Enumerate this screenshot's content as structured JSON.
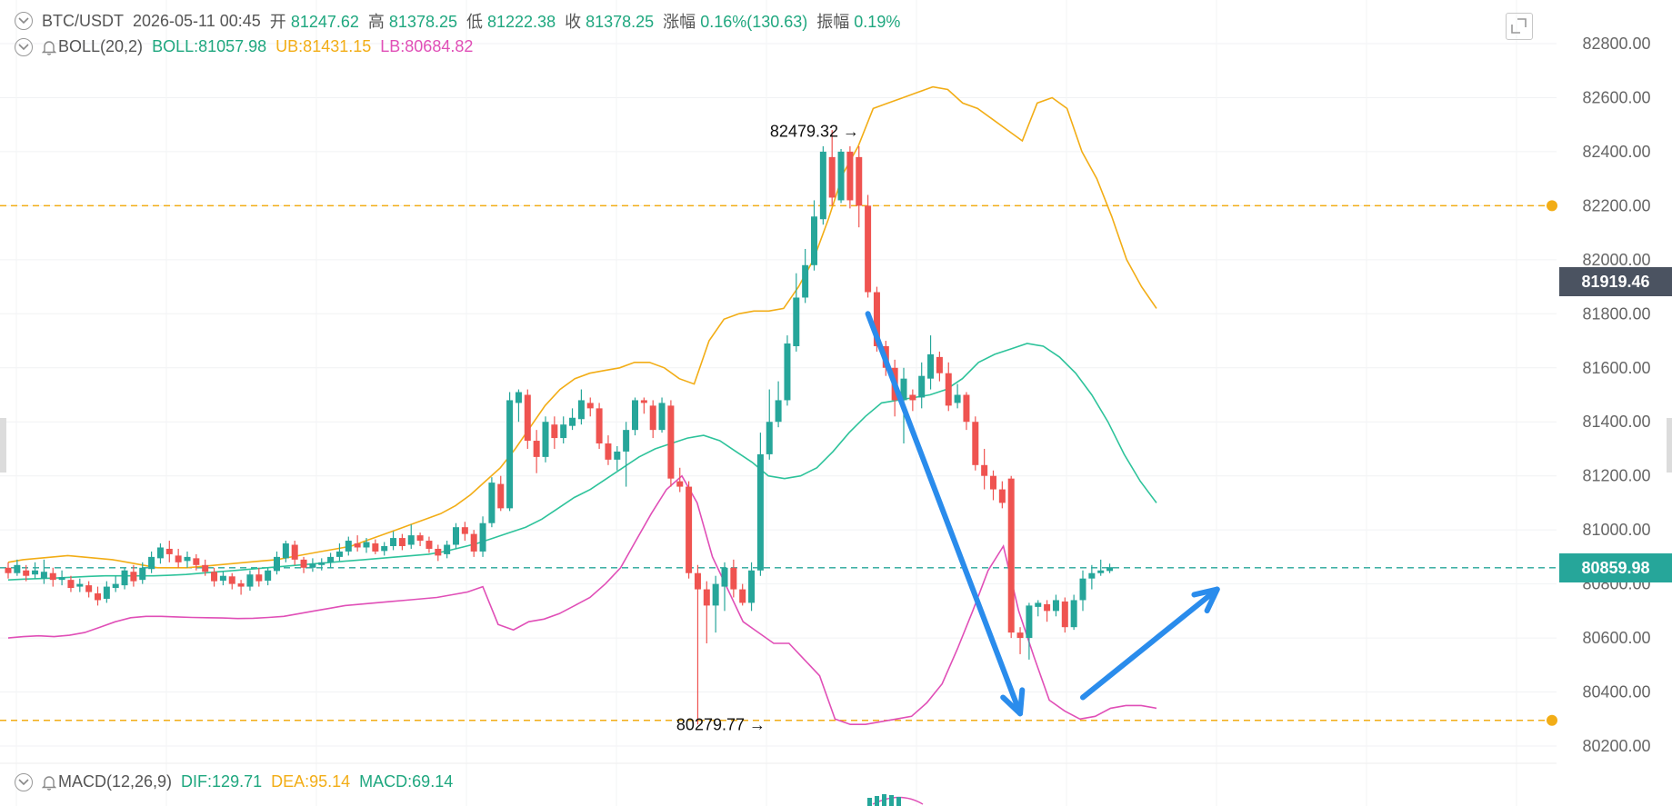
{
  "header": {
    "symbol": "BTC/USDT",
    "datetime": "2026-05-11 00:45",
    "open_label": "开",
    "open_value": "81247.62",
    "high_label": "高",
    "high_value": "81378.25",
    "low_label": "低",
    "low_value": "81222.38",
    "close_label": "收",
    "close_value": "81378.25",
    "change_label": "涨幅",
    "change_value": "0.16%(130.63)",
    "amplitude_label": "振幅",
    "amplitude_value": "0.19%"
  },
  "boll": {
    "name": "BOLL(20,2)",
    "boll_text": "BOLL:81057.98",
    "ub_text": "UB:81431.15",
    "lb_text": "LB:80684.82"
  },
  "macd": {
    "name": "MACD(12,26,9)",
    "dif_text": "DIF:129.71",
    "dea_text": "DEA:95.14",
    "macd_text": "MACD:69.14"
  },
  "price_tags": {
    "current_price": "80859.98",
    "crosshair_price": "81919.46"
  },
  "annotations": {
    "high_marker": "82479.32",
    "low_marker": "80279.77",
    "arrow_glyph": "→"
  },
  "colors": {
    "up": "#26a69a",
    "down": "#ef5350",
    "mid_band": "#2ec39b",
    "upper_band": "#f2ad16",
    "lower_band": "#e04fb7",
    "alert_line": "#f2ad16",
    "current_price": "#26a69a",
    "crosshair_tag": "#4b5361",
    "drawn_arrow": "#2a8cec"
  },
  "chart_data": {
    "type": "candlestick",
    "y_axis": {
      "range": [
        80160,
        82920
      ],
      "ticks": [
        "82800.00",
        "82600.00",
        "82400.00",
        "82200.00",
        "82000.00",
        "81800.00",
        "81600.00",
        "81400.00",
        "81200.00",
        "81000.00",
        "80800.00",
        "80600.00",
        "80400.00",
        "80200.00"
      ],
      "tick_values": [
        82800,
        82600,
        82400,
        82200,
        82000,
        81800,
        81600,
        81400,
        81200,
        81000,
        80800,
        80600,
        80400,
        80200
      ]
    },
    "horizontal_lines": [
      {
        "name": "alert-upper",
        "value": 82200,
        "style": "dashed"
      },
      {
        "name": "alert-lower",
        "value": 80295,
        "style": "dashed"
      },
      {
        "name": "current-price",
        "value": 80859.98,
        "style": "dashed"
      }
    ],
    "candles": [
      [
        80860,
        80840,
        80880,
        80820
      ],
      [
        80840,
        80870,
        80890,
        80830
      ],
      [
        80850,
        80830,
        80870,
        80810
      ],
      [
        80835,
        80850,
        80880,
        80820
      ],
      [
        80820,
        80845,
        80890,
        80800
      ],
      [
        80840,
        80815,
        80860,
        80790
      ],
      [
        80815,
        80825,
        80850,
        80795
      ],
      [
        80815,
        80785,
        80830,
        80770
      ],
      [
        80790,
        80800,
        80820,
        80770
      ],
      [
        80795,
        80770,
        80810,
        80750
      ],
      [
        80765,
        80740,
        80790,
        80720
      ],
      [
        80745,
        80790,
        80810,
        80730
      ],
      [
        80785,
        80800,
        80830,
        80770
      ],
      [
        80795,
        80850,
        80860,
        80780
      ],
      [
        80845,
        80810,
        80870,
        80790
      ],
      [
        80815,
        80860,
        80880,
        80800
      ],
      [
        80855,
        80900,
        80920,
        80840
      ],
      [
        80895,
        80935,
        80950,
        80875
      ],
      [
        80930,
        80910,
        80960,
        80880
      ],
      [
        80905,
        80880,
        80930,
        80860
      ],
      [
        80885,
        80900,
        80920,
        80860
      ],
      [
        80895,
        80870,
        80910,
        80850
      ],
      [
        80870,
        80845,
        80890,
        80830
      ],
      [
        80845,
        80810,
        80860,
        80790
      ],
      [
        80812,
        80830,
        80845,
        80795
      ],
      [
        80828,
        80800,
        80840,
        80780
      ],
      [
        80802,
        80790,
        80815,
        80760
      ],
      [
        80790,
        80835,
        80850,
        80775
      ],
      [
        80835,
        80810,
        80860,
        80790
      ],
      [
        80812,
        80850,
        80860,
        80795
      ],
      [
        80848,
        80900,
        80920,
        80835
      ],
      [
        80895,
        80950,
        80960,
        80880
      ],
      [
        80945,
        80890,
        80960,
        80870
      ],
      [
        80890,
        80860,
        80900,
        80840
      ],
      [
        80860,
        80875,
        80895,
        80845
      ],
      [
        80870,
        80880,
        80895,
        80850
      ],
      [
        80880,
        80900,
        80915,
        80860
      ],
      [
        80900,
        80920,
        80950,
        80885
      ],
      [
        80920,
        80960,
        80975,
        80905
      ],
      [
        80950,
        80935,
        80980,
        80920
      ],
      [
        80935,
        80955,
        80970,
        80915
      ],
      [
        80950,
        80920,
        80965,
        80910
      ],
      [
        80922,
        80940,
        80955,
        80905
      ],
      [
        80940,
        80970,
        80995,
        80925
      ],
      [
        80970,
        80940,
        80985,
        80925
      ],
      [
        80945,
        80980,
        81020,
        80930
      ],
      [
        80980,
        80960,
        80990,
        80940
      ],
      [
        80960,
        80930,
        80975,
        80915
      ],
      [
        80930,
        80905,
        80945,
        80885
      ],
      [
        80910,
        80945,
        80960,
        80895
      ],
      [
        80945,
        81010,
        81025,
        80930
      ],
      [
        81010,
        80985,
        81030,
        80960
      ],
      [
        80985,
        80920,
        81000,
        80900
      ],
      [
        80920,
        81025,
        81050,
        80900
      ],
      [
        81025,
        81175,
        81195,
        81010
      ],
      [
        81170,
        81080,
        81200,
        81070
      ],
      [
        81080,
        81480,
        81510,
        81070
      ],
      [
        81470,
        81510,
        81520,
        81400
      ],
      [
        81500,
        81330,
        81520,
        81300
      ],
      [
        81330,
        81270,
        81370,
        81210
      ],
      [
        81270,
        81400,
        81420,
        81250
      ],
      [
        81390,
        81340,
        81420,
        81300
      ],
      [
        81340,
        81390,
        81420,
        81320
      ],
      [
        81385,
        81415,
        81450,
        81370
      ],
      [
        81410,
        81480,
        81520,
        81390
      ],
      [
        81470,
        81450,
        81490,
        81420
      ],
      [
        81450,
        81320,
        81470,
        81300
      ],
      [
        81320,
        81260,
        81350,
        81240
      ],
      [
        81260,
        81290,
        81310,
        81220
      ],
      [
        81290,
        81370,
        81400,
        81160
      ],
      [
        81370,
        81480,
        81490,
        81350
      ],
      [
        81480,
        81470,
        81490,
        81430
      ],
      [
        81460,
        81370,
        81480,
        81340
      ],
      [
        81370,
        81470,
        81490,
        81360
      ],
      [
        81460,
        81190,
        81480,
        81160
      ],
      [
        81180,
        81160,
        81230,
        81140
      ],
      [
        81160,
        80840,
        81180,
        80820
      ],
      [
        80840,
        80780,
        80870,
        80280
      ],
      [
        80780,
        80720,
        80810,
        80580
      ],
      [
        80720,
        80800,
        80830,
        80620
      ],
      [
        80790,
        80860,
        80880,
        80700
      ],
      [
        80860,
        80780,
        80890,
        80750
      ],
      [
        80780,
        80730,
        80800,
        80720
      ],
      [
        80730,
        80850,
        80880,
        80700
      ],
      [
        80850,
        81280,
        81360,
        80830
      ],
      [
        81280,
        81400,
        81520,
        81260
      ],
      [
        81400,
        81480,
        81550,
        81380
      ],
      [
        81480,
        81690,
        81720,
        81460
      ],
      [
        81680,
        81860,
        81950,
        81660
      ],
      [
        81860,
        81980,
        82040,
        81840
      ],
      [
        81980,
        82160,
        82220,
        81960
      ],
      [
        82150,
        82400,
        82420,
        82130
      ],
      [
        82380,
        82230,
        82480,
        82200
      ],
      [
        82220,
        82400,
        82410,
        82210
      ],
      [
        82400,
        82220,
        82420,
        82190
      ],
      [
        82380,
        82200,
        82420,
        82120
      ],
      [
        82200,
        81880,
        82240,
        81860
      ],
      [
        81880,
        81680,
        81900,
        81660
      ],
      [
        81680,
        81600,
        81700,
        81570
      ],
      [
        81600,
        81480,
        81630,
        81420
      ],
      [
        81480,
        81560,
        81600,
        81320
      ],
      [
        81500,
        81480,
        81520,
        81440
      ],
      [
        81490,
        81570,
        81620,
        81450
      ],
      [
        81560,
        81650,
        81720,
        81520
      ],
      [
        81640,
        81580,
        81660,
        81550
      ],
      [
        81580,
        81460,
        81620,
        81440
      ],
      [
        81470,
        81500,
        81540,
        81450
      ],
      [
        81500,
        81400,
        81510,
        81370
      ],
      [
        81400,
        81240,
        81420,
        81220
      ],
      [
        81240,
        81200,
        81300,
        81150
      ],
      [
        81200,
        81150,
        81220,
        81110
      ],
      [
        81150,
        81100,
        81180,
        81080
      ],
      [
        81190,
        80620,
        81200,
        80600
      ],
      [
        80620,
        80600,
        80640,
        80540
      ],
      [
        80600,
        80720,
        80730,
        80520
      ],
      [
        80715,
        80730,
        80740,
        80680
      ],
      [
        80725,
        80700,
        80740,
        80660
      ],
      [
        80700,
        80740,
        80760,
        80680
      ],
      [
        80735,
        80640,
        80750,
        80620
      ],
      [
        80640,
        80740,
        80760,
        80630
      ],
      [
        80740,
        80820,
        80850,
        80700
      ],
      [
        80820,
        80840,
        80870,
        80780
      ],
      [
        80840,
        80850,
        80890,
        80830
      ],
      [
        80848,
        80862,
        80875,
        80840
      ]
    ],
    "boll_upper": [
      80880,
      80890,
      80895,
      80900,
      80905,
      80900,
      80895,
      80890,
      80880,
      80870,
      80860,
      80860,
      80860,
      80865,
      80870,
      80875,
      80880,
      80885,
      80890,
      80900,
      80910,
      80920,
      80930,
      80940,
      80960,
      80980,
      81000,
      81020,
      81040,
      81060,
      81090,
      81130,
      81180,
      81230,
      81300,
      81380,
      81460,
      81520,
      81560,
      81580,
      81590,
      81600,
      81620,
      81620,
      81600,
      81560,
      81540,
      81700,
      81780,
      81800,
      81810,
      81810,
      81820,
      81900,
      82000,
      82150,
      82320,
      82420,
      82560,
      82580,
      82600,
      82620,
      82640,
      82630,
      82580,
      82560,
      82520,
      82480,
      82440,
      82580,
      82600,
      82560,
      82400,
      82300,
      82160,
      82000,
      81900,
      81820
    ],
    "boll_mid": [
      80815,
      80818,
      80820,
      80822,
      80825,
      80828,
      80830,
      80830,
      80830,
      80830,
      80832,
      80835,
      80840,
      80845,
      80850,
      80855,
      80860,
      80865,
      80870,
      80875,
      80880,
      80885,
      80890,
      80895,
      80900,
      80905,
      80910,
      80920,
      80935,
      80950,
      80970,
      80990,
      81010,
      81040,
      81080,
      81120,
      81150,
      81190,
      81230,
      81270,
      81300,
      81320,
      81340,
      81350,
      81330,
      81290,
      81250,
      81200,
      81190,
      81200,
      81230,
      81290,
      81360,
      81420,
      81470,
      81480,
      81490,
      81500,
      81520,
      81560,
      81620,
      81650,
      81670,
      81690,
      81680,
      81640,
      81580,
      81500,
      81400,
      81280,
      81180,
      81100
    ],
    "boll_lower": [
      80600,
      80605,
      80608,
      80605,
      80610,
      80620,
      80640,
      80660,
      80675,
      80680,
      80680,
      80678,
      80676,
      80675,
      80674,
      80672,
      80673,
      80676,
      80680,
      80690,
      80700,
      80710,
      80720,
      80725,
      80730,
      80735,
      80740,
      80745,
      80750,
      80760,
      80770,
      80790,
      80650,
      80630,
      80660,
      80670,
      80690,
      80720,
      80750,
      80800,
      80860,
      80960,
      81060,
      81150,
      81200,
      81100,
      80900,
      80780,
      80660,
      80620,
      80580,
      80580,
      80520,
      80460,
      80300,
      80280,
      80280,
      80290,
      80300,
      80310,
      80360,
      80430,
      80560,
      80700,
      80850,
      80940,
      80700,
      80530,
      80370,
      80330,
      80300,
      80310,
      80340,
      80350,
      80350,
      80340
    ],
    "drawn_arrows": [
      {
        "name": "down-arrow",
        "from": [
          81800,
          "candle 96"
        ],
        "to": [
          80320,
          "candle 113"
        ]
      },
      {
        "name": "up-arrow",
        "from": [
          80380,
          "candle 120"
        ],
        "to": [
          80780,
          "candle 135"
        ]
      }
    ]
  }
}
